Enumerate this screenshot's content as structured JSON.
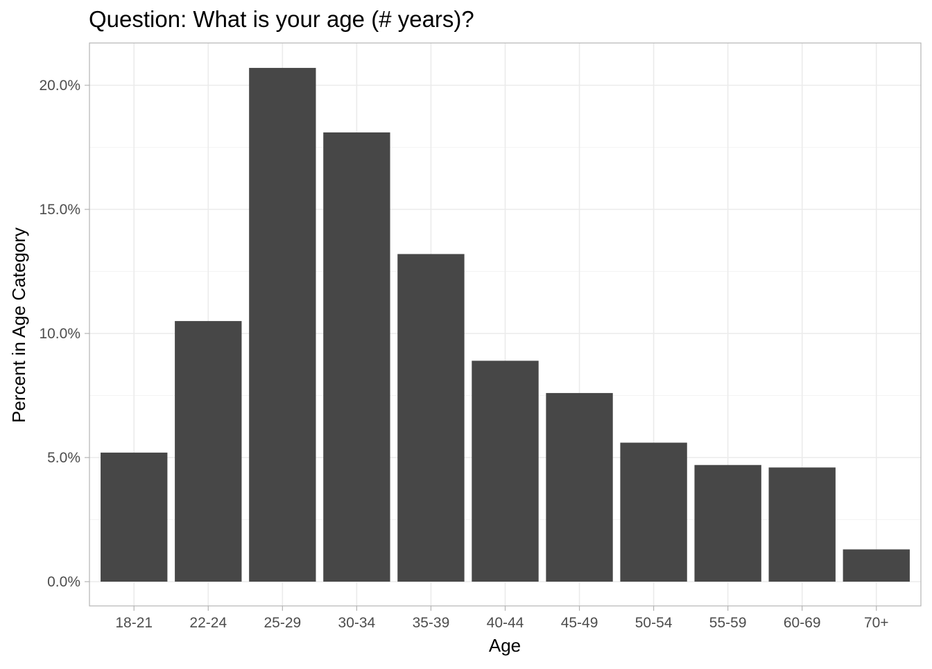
{
  "chart_data": {
    "type": "bar",
    "title": "Question: What is your age (# years)?",
    "xlabel": "Age",
    "ylabel": "Percent in Age Category",
    "categories": [
      "18-21",
      "22-24",
      "25-29",
      "30-34",
      "35-39",
      "40-44",
      "45-49",
      "50-54",
      "55-59",
      "60-69",
      "70+"
    ],
    "values": [
      5.2,
      10.5,
      20.7,
      18.1,
      13.2,
      8.9,
      7.6,
      5.6,
      4.7,
      4.6,
      1.3
    ],
    "value_unit": "percent",
    "ylim": [
      0,
      21
    ],
    "yticks": [
      0,
      5,
      10,
      15,
      20
    ],
    "ytick_labels": [
      "0.0%",
      "5.0%",
      "10.0%",
      "15.0%",
      "20.0%"
    ],
    "grid": true,
    "bar_color": "#474747",
    "grid_color": "#ebebeb",
    "border_color": "#b3b3b3"
  }
}
